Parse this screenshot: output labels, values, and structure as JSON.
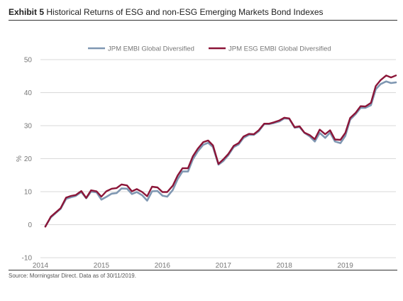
{
  "header": {
    "exhibit_label": "Exhibit 5",
    "title": "Historical Returns of ESG and non-ESG Emerging Markets Bond Indexes"
  },
  "footer": {
    "source": "Source: Morningstar Direct. Data as of 30/11/2019."
  },
  "chart_data": {
    "type": "line",
    "title": "Historical Returns of ESG and non-ESG Emerging Markets Bond Indexes",
    "xlabel": "",
    "ylabel": "%",
    "xlim": [
      2014,
      2019.83
    ],
    "ylim": [
      -10,
      50
    ],
    "x_ticks": [
      2014,
      2015,
      2016,
      2017,
      2018,
      2019
    ],
    "x_tick_labels": [
      "2014",
      "2015",
      "2016",
      "2017",
      "2018",
      "2019"
    ],
    "y_ticks": [
      -10,
      0,
      10,
      20,
      30,
      40,
      50
    ],
    "y_tick_labels": [
      "-10",
      "0",
      "10",
      "20",
      "30",
      "40",
      "50"
    ],
    "grid": {
      "horizontal": true,
      "vertical": false
    },
    "legend_position": "top-center",
    "x": [
      2014.08,
      2014.17,
      2014.25,
      2014.33,
      2014.42,
      2014.5,
      2014.58,
      2014.67,
      2014.75,
      2014.83,
      2014.92,
      2015.0,
      2015.08,
      2015.17,
      2015.25,
      2015.33,
      2015.42,
      2015.5,
      2015.58,
      2015.67,
      2015.75,
      2015.83,
      2015.92,
      2016.0,
      2016.08,
      2016.17,
      2016.25,
      2016.33,
      2016.42,
      2016.5,
      2016.58,
      2016.67,
      2016.75,
      2016.83,
      2016.92,
      2017.0,
      2017.08,
      2017.17,
      2017.25,
      2017.33,
      2017.42,
      2017.5,
      2017.58,
      2017.67,
      2017.75,
      2017.83,
      2017.92,
      2018.0,
      2018.08,
      2018.17,
      2018.25,
      2018.33,
      2018.42,
      2018.5,
      2018.58,
      2018.67,
      2018.75,
      2018.83,
      2018.92,
      2019.0,
      2019.08,
      2019.17,
      2019.25,
      2019.33,
      2019.42,
      2019.5,
      2019.58,
      2019.67,
      2019.75,
      2019.83
    ],
    "series": [
      {
        "name": "JPM EMBI Global Diversified",
        "color": "#7f97b2",
        "values": [
          -0.5,
          2.2,
          3.5,
          4.8,
          7.8,
          8.3,
          8.7,
          9.9,
          8.0,
          10.0,
          9.8,
          7.6,
          8.4,
          9.4,
          9.6,
          11.0,
          10.9,
          9.3,
          9.9,
          8.9,
          7.3,
          10.1,
          10.2,
          8.8,
          8.5,
          10.5,
          13.8,
          16.1,
          16.1,
          19.8,
          22.2,
          24.2,
          24.8,
          23.5,
          18.2,
          19.3,
          21.0,
          23.5,
          24.3,
          26.3,
          27.2,
          27.2,
          28.3,
          30.5,
          30.5,
          30.8,
          31.3,
          32.2,
          32.1,
          29.4,
          29.6,
          27.8,
          26.7,
          25.2,
          27.8,
          26.3,
          27.9,
          25.2,
          24.7,
          26.9,
          31.8,
          33.5,
          35.4,
          35.4,
          36.2,
          41.0,
          42.6,
          43.4,
          42.9,
          43.1
        ]
      },
      {
        "name": "JPM ESG EMBI Global Diversified",
        "color": "#8b1538",
        "values": [
          -0.6,
          2.4,
          3.7,
          5.0,
          8.2,
          8.7,
          9.0,
          10.2,
          8.1,
          10.4,
          10.1,
          8.5,
          10.1,
          10.9,
          11.1,
          12.2,
          11.9,
          10.1,
          10.8,
          9.9,
          8.6,
          11.5,
          11.3,
          9.9,
          9.9,
          11.8,
          14.9,
          17.1,
          17.1,
          20.7,
          23.0,
          25.0,
          25.5,
          24.0,
          18.4,
          19.8,
          21.4,
          23.9,
          24.7,
          26.7,
          27.5,
          27.4,
          28.6,
          30.6,
          30.6,
          31.0,
          31.6,
          32.4,
          32.2,
          29.5,
          29.8,
          27.9,
          27.1,
          25.9,
          28.8,
          27.4,
          28.6,
          25.8,
          25.7,
          27.8,
          32.3,
          33.9,
          35.9,
          35.8,
          36.9,
          42.0,
          43.8,
          45.2,
          44.6,
          45.2
        ]
      }
    ]
  }
}
